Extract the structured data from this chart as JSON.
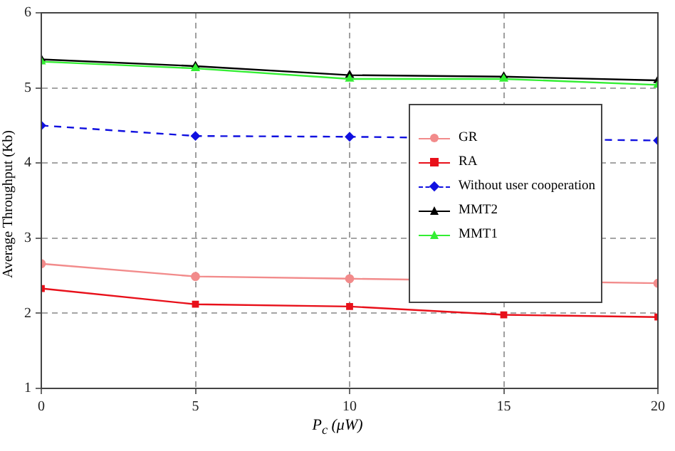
{
  "chart_data": {
    "type": "line",
    "xlabel": "P$_{c}$  (μW)",
    "ylabel": "Average Throughput  (Kb)",
    "x": [
      0,
      5,
      10,
      15,
      20
    ],
    "xlim": [
      0,
      20
    ],
    "xticks": [
      0,
      5,
      10,
      15,
      20
    ],
    "ylim": [
      1,
      6
    ],
    "yticks": [
      1,
      2,
      3,
      4,
      5,
      6
    ],
    "grid": true,
    "legend": "right",
    "series": [
      {
        "name": "GR",
        "color": "#f28b8b",
        "marker": "circle",
        "line_style": "solid",
        "values": [
          2.66,
          2.49,
          2.46,
          null,
          2.4
        ]
      },
      {
        "name": "RA",
        "color": "#e8101a",
        "marker": "square",
        "line_style": "solid",
        "values": [
          2.33,
          2.12,
          2.09,
          1.98,
          1.95
        ]
      },
      {
        "name": "Without user cooperation",
        "color": "#1010e0",
        "marker": "diamond",
        "line_style": "dashed",
        "values": [
          4.5,
          4.36,
          4.35,
          null,
          4.3
        ]
      },
      {
        "name": "MMT2",
        "color": "#000000",
        "marker": "triangle",
        "line_style": "solid",
        "values": [
          5.38,
          5.29,
          5.17,
          5.15,
          5.1
        ]
      },
      {
        "name": "MMT1",
        "color": "#33ee33",
        "marker": "triangle",
        "line_style": "solid",
        "values": [
          5.35,
          5.26,
          5.12,
          5.12,
          5.04
        ]
      }
    ]
  }
}
